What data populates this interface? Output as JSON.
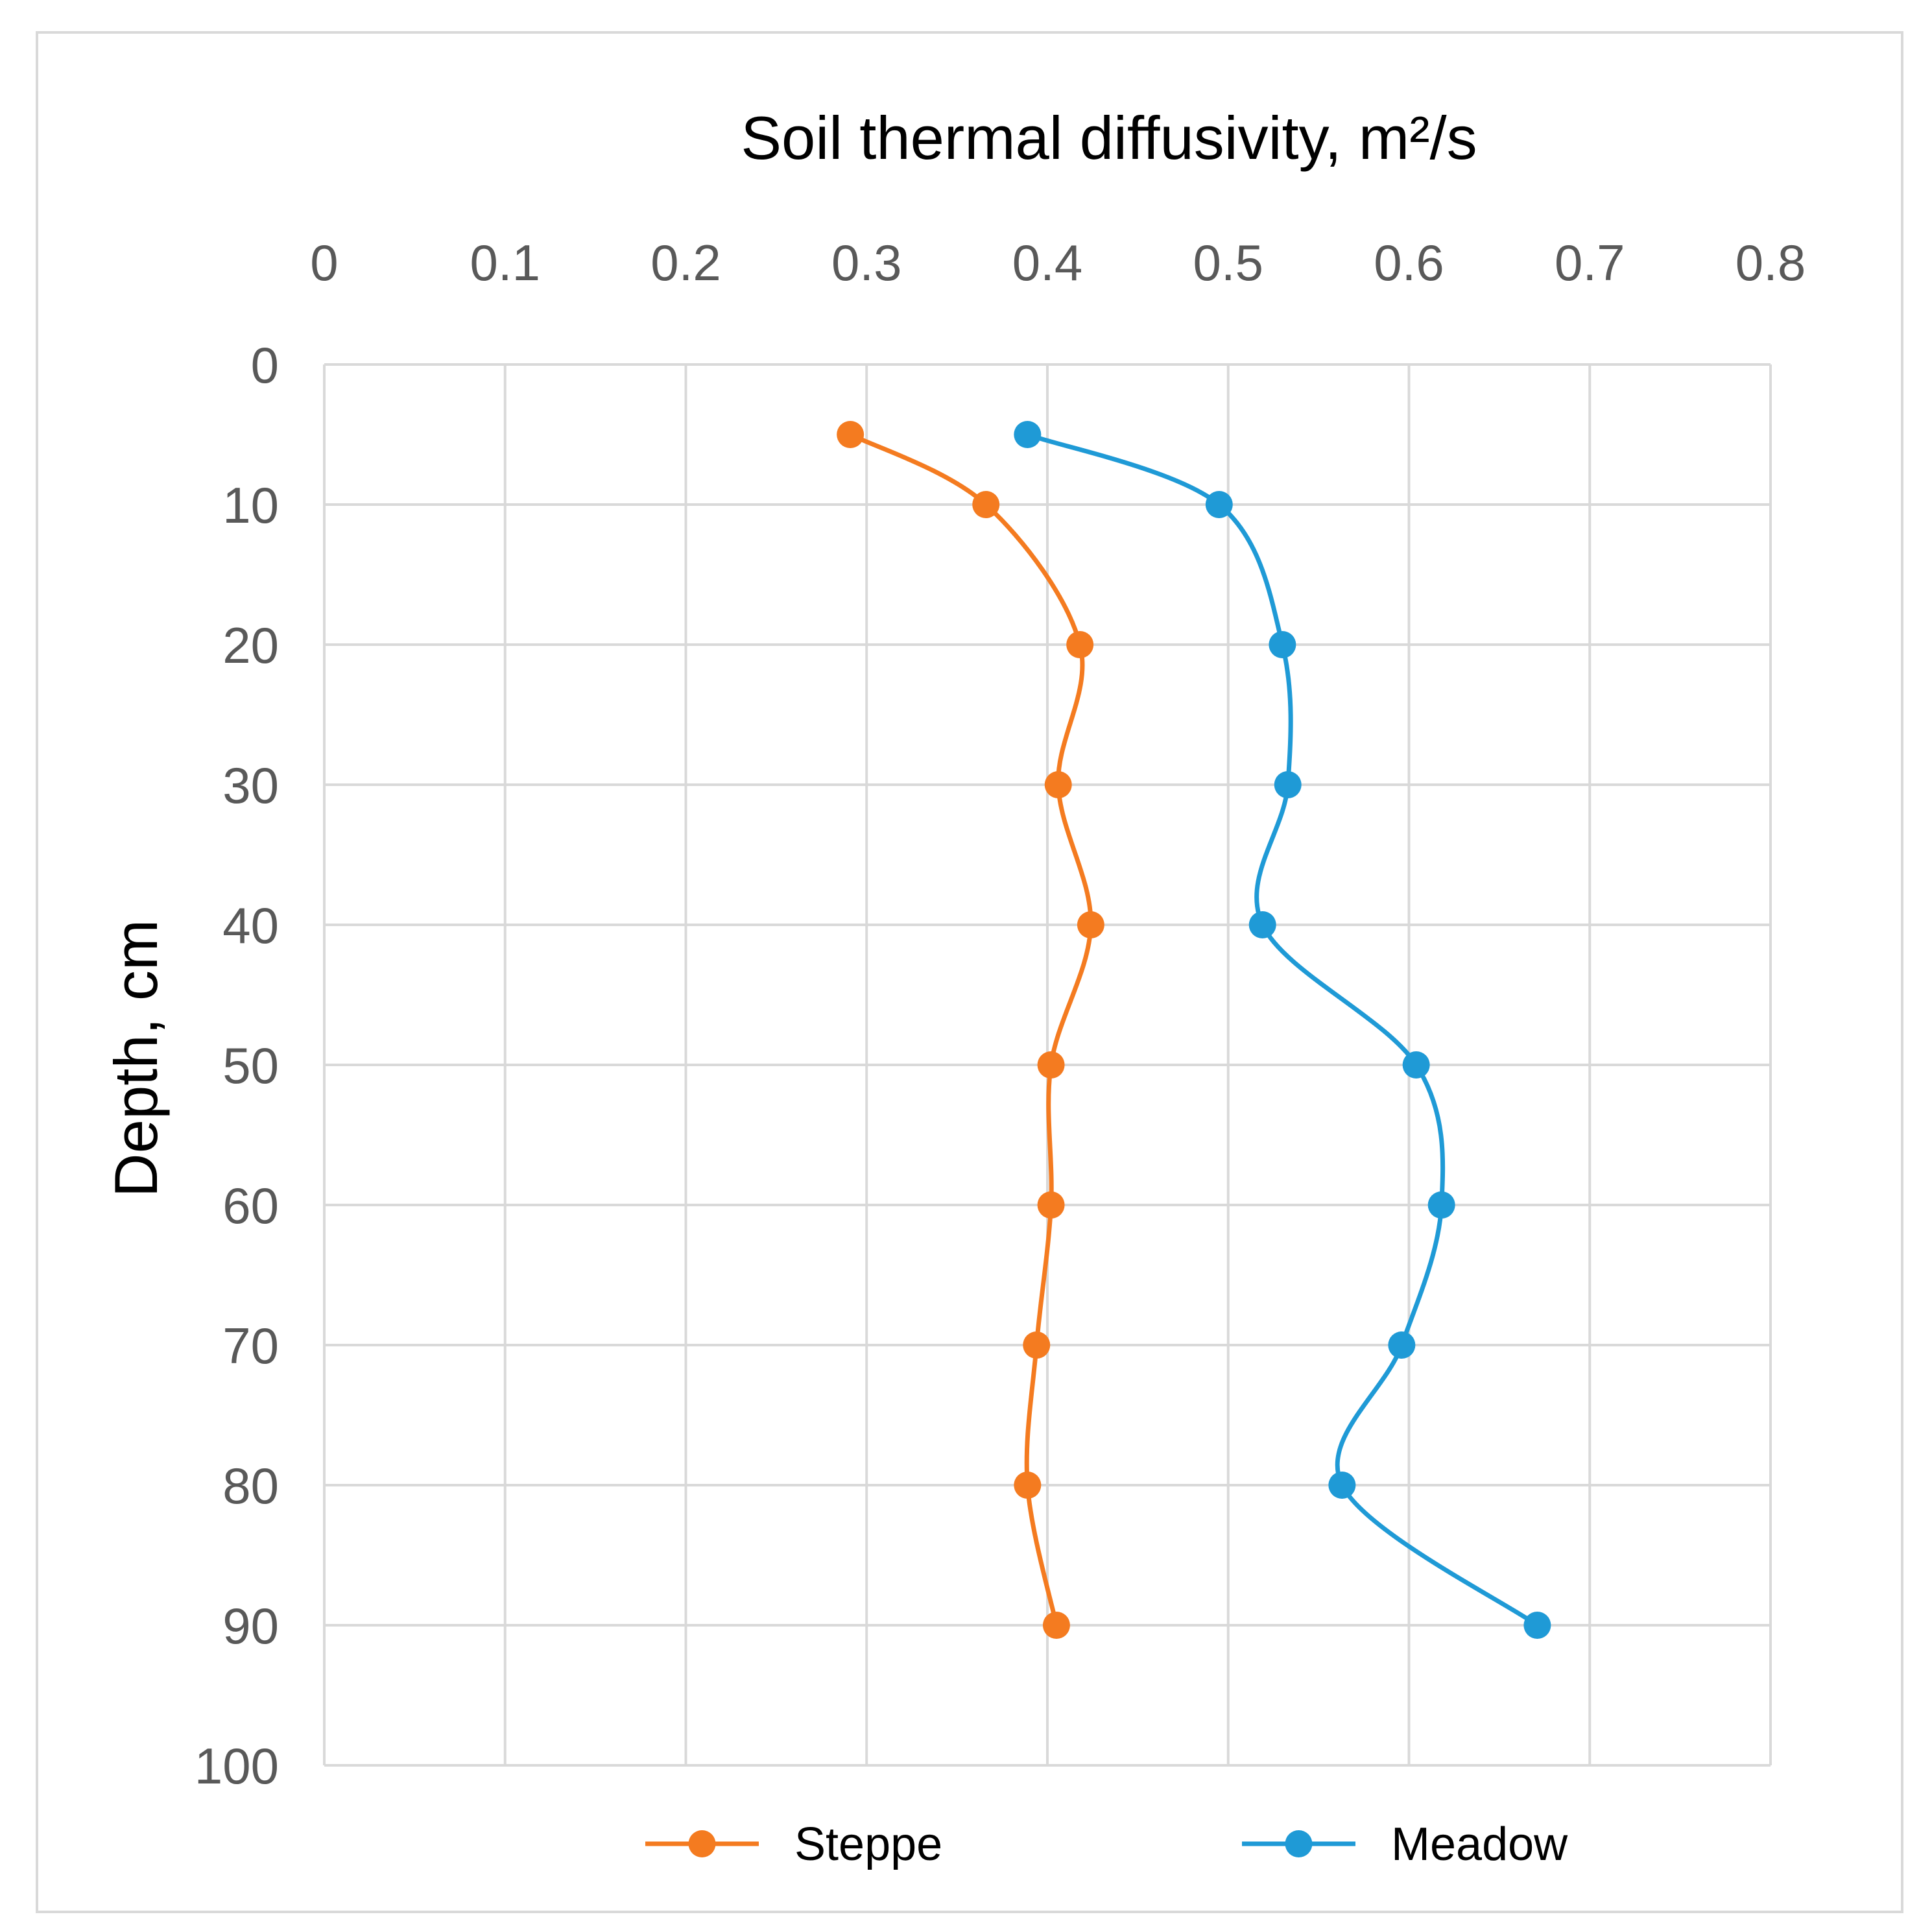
{
  "chart_data": {
    "type": "line",
    "orientation": "depth-profile",
    "title": "",
    "xlabel": "Soil thermal diffusivity, m²/s",
    "ylabel": "Depth, cm",
    "x_axis_position": "top",
    "y_axis_inverted": true,
    "xlim": [
      0,
      0.8
    ],
    "ylim": [
      0,
      100
    ],
    "x_ticks": [
      "0",
      "0.1",
      "0.2",
      "0.3",
      "0.4",
      "0.5",
      "0.6",
      "0.7",
      "0.8"
    ],
    "y_ticks": [
      "0",
      "10",
      "20",
      "30",
      "40",
      "50",
      "60",
      "70",
      "80",
      "90",
      "100"
    ],
    "grid": true,
    "smooth": true,
    "legend": "bottom",
    "depths": [
      5,
      10,
      20,
      30,
      40,
      50,
      60,
      70,
      80,
      90
    ],
    "series": [
      {
        "name": "Steppe",
        "color": "#f47b20",
        "values": [
          0.291,
          0.366,
          0.418,
          0.406,
          0.424,
          0.402,
          0.402,
          0.394,
          0.389,
          0.405
        ]
      },
      {
        "name": "Meadow",
        "color": "#1f9ad6",
        "values": [
          0.389,
          0.495,
          0.53,
          0.533,
          0.519,
          0.604,
          0.618,
          0.596,
          0.563,
          0.671
        ]
      }
    ]
  }
}
